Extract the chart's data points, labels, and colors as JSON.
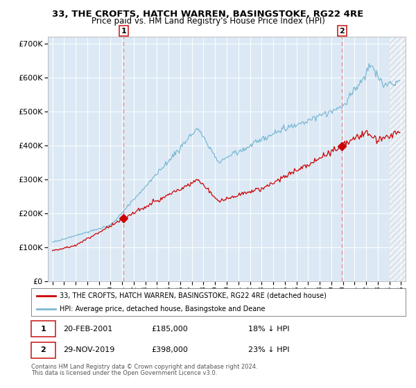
{
  "title": "33, THE CROFTS, HATCH WARREN, BASINGSTOKE, RG22 4RE",
  "subtitle": "Price paid vs. HM Land Registry's House Price Index (HPI)",
  "legend_line1": "33, THE CROFTS, HATCH WARREN, BASINGSTOKE, RG22 4RE (detached house)",
  "legend_line2": "HPI: Average price, detached house, Basingstoke and Deane",
  "ann1_label": "1",
  "ann1_date": "20-FEB-2001",
  "ann1_price": 185000,
  "ann1_hpi_diff": "18% ↓ HPI",
  "ann1_x_year": 2001.13,
  "ann2_label": "2",
  "ann2_date": "29-NOV-2019",
  "ann2_price": 398000,
  "ann2_hpi_diff": "23% ↓ HPI",
  "ann2_x_year": 2019.92,
  "footer1": "Contains HM Land Registry data © Crown copyright and database right 2024.",
  "footer2": "This data is licensed under the Open Government Licence v3.0.",
  "hatch_start": 2024.0,
  "xlim_left": 1994.6,
  "xlim_right": 2025.4,
  "ylim": [
    0,
    720000
  ],
  "yticks": [
    0,
    100000,
    200000,
    300000,
    400000,
    500000,
    600000,
    700000
  ],
  "background_color": "#dce9f5",
  "grid_color": "#ffffff",
  "line_color_red": "#cc0000",
  "line_color_blue": "#7ab8d4",
  "vline_color": "#e89090"
}
